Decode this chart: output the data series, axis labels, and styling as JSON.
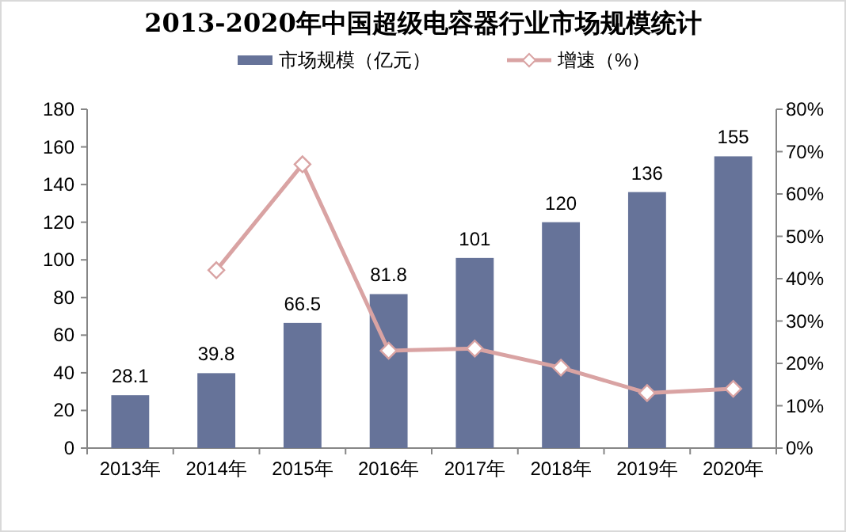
{
  "chart_data": {
    "type": "bar",
    "title": "2013-2020年中国超级电容器行业市场规模统计",
    "categories": [
      "2013年",
      "2014年",
      "2015年",
      "2016年",
      "2017年",
      "2018年",
      "2019年",
      "2020年"
    ],
    "series": [
      {
        "name": "市场规模（亿元）",
        "color": "#667399",
        "values": [
          28.1,
          39.8,
          66.5,
          81.8,
          101,
          120,
          136,
          155
        ],
        "value_labels": [
          "28.1",
          "39.8",
          "66.5",
          "81.8",
          "101",
          "120",
          "136",
          "155"
        ]
      },
      {
        "name": "增速（%）",
        "type": "line",
        "axis": "y2",
        "color": "#d9a3a3",
        "marker": "diamond",
        "values": [
          null,
          42,
          67,
          23,
          23.5,
          19,
          13,
          14
        ]
      }
    ],
    "ylim": [
      0,
      180
    ],
    "yticks": [
      0,
      20,
      40,
      60,
      80,
      100,
      120,
      140,
      160,
      180
    ],
    "y2lim": [
      0,
      80
    ],
    "y2ticks": [
      {
        "value": 0,
        "label": "0%"
      },
      {
        "value": 10,
        "label": "10%"
      },
      {
        "value": 20,
        "label": "20%"
      },
      {
        "value": 30,
        "label": "30%"
      },
      {
        "value": 40,
        "label": "40%"
      },
      {
        "value": 50,
        "label": "50%"
      },
      {
        "value": 60,
        "label": "60%"
      },
      {
        "value": 70,
        "label": "70%"
      },
      {
        "value": 80,
        "label": "80%"
      }
    ],
    "grid": false,
    "legend": "top"
  }
}
